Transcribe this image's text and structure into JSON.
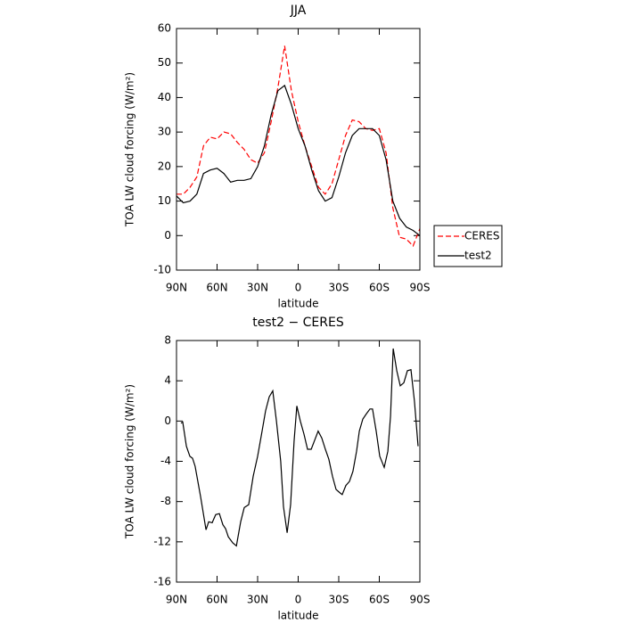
{
  "chart_data": [
    {
      "type": "line",
      "title": "JJA",
      "xlabel": "latitude",
      "ylabel": "TOA LW cloud forcing (W/m²)",
      "x": [
        -90,
        -85,
        -80,
        -75,
        -70,
        -65,
        -60,
        -55,
        -50,
        -45,
        -40,
        -35,
        -30,
        -25,
        -20,
        -15,
        -10,
        -5,
        0,
        5,
        10,
        15,
        20,
        25,
        30,
        35,
        40,
        45,
        50,
        55,
        60,
        65,
        70,
        75,
        80,
        85,
        90
      ],
      "series": [
        {
          "name": "CERES",
          "color": "#ff0000",
          "style": "dashed",
          "values": [
            12,
            12,
            14,
            17,
            26,
            28.5,
            28,
            30,
            29.5,
            27,
            25,
            22,
            21,
            24,
            33,
            43,
            55,
            42,
            33,
            26,
            20,
            14,
            12,
            15,
            22,
            29,
            33.5,
            33,
            31,
            30.5,
            31,
            24,
            8,
            -0.5,
            -1,
            -3,
            2
          ]
        },
        {
          "name": "test2",
          "color": "#000000",
          "style": "solid",
          "values": [
            11.5,
            9.5,
            10,
            12,
            18,
            19,
            19.5,
            18,
            15.5,
            16,
            16,
            16.5,
            20,
            26,
            35,
            42,
            43.5,
            38,
            31,
            26,
            19,
            13,
            10,
            11,
            17,
            24,
            29,
            31,
            31,
            31,
            29,
            22,
            10,
            5,
            2.5,
            1.5,
            0
          ]
        }
      ],
      "xlim": [
        -90,
        90
      ],
      "xticks": [
        {
          "value": -90,
          "label": "90N"
        },
        {
          "value": -60,
          "label": "60N"
        },
        {
          "value": -30,
          "label": "30N"
        },
        0,
        {
          "value": 30,
          "label": "30S"
        },
        {
          "value": 60,
          "label": "60S"
        },
        {
          "value": 90,
          "label": "90S"
        }
      ],
      "ylim": [
        -10,
        60
      ],
      "yticks": [
        -10,
        0,
        10,
        20,
        30,
        40,
        50,
        60
      ],
      "legend": "right"
    },
    {
      "type": "line",
      "title": "test2 − CERES",
      "xlabel": "latitude",
      "ylabel": "TOA LW cloud forcing (W/m²)",
      "x": [
        -86.7,
        -85.4,
        -82.7,
        -80.1,
        -78.1,
        -76.2,
        -72.2,
        -68.2,
        -66.2,
        -63.6,
        -61.0,
        -58.3,
        -55.7,
        -53.7,
        -51.7,
        -48.4,
        -45.7,
        -42.5,
        -39.9,
        -36.6,
        -33.3,
        -30.0,
        -26.7,
        -24.1,
        -21.4,
        -18.8,
        -16.1,
        -12.9,
        -10.9,
        -8.2,
        -5.6,
        -3.0,
        -1.0,
        1.6,
        4.3,
        6.9,
        9.6,
        12.2,
        14.8,
        17.5,
        20.1,
        22.7,
        25.4,
        28.0,
        30.6,
        32.6,
        35.3,
        37.9,
        40.5,
        43.2,
        45.2,
        47.8,
        50.4,
        53.1,
        55.0,
        57.7,
        60.3,
        63.6,
        66.3,
        68.3,
        70.3,
        72.9,
        75.5,
        78.1,
        80.8,
        83.4,
        86.0,
        88.7
      ],
      "series": [
        {
          "color": "#000000",
          "style": "solid",
          "values": [
            -0.2,
            -0.1,
            -2.5,
            -3.5,
            -3.7,
            -4.5,
            -7.5,
            -10.8,
            -10,
            -10.1,
            -9.3,
            -9.2,
            -10.3,
            -10.7,
            -11.5,
            -12.1,
            -12.4,
            -10,
            -8.6,
            -8.3,
            -5.5,
            -3.5,
            -1,
            1,
            2.4,
            3,
            0,
            -4,
            -8.5,
            -11.1,
            -8.3,
            -2,
            1.5,
            0,
            -1.3,
            -2.8,
            -2.8,
            -1.9,
            -1,
            -1.7,
            -2.8,
            -3.8,
            -5.5,
            -6.8,
            -7.1,
            -7.3,
            -6.4,
            -6,
            -5,
            -3,
            -1,
            0.2,
            0.7,
            1.2,
            1.2,
            -1,
            -3.5,
            -4.6,
            -3,
            0.5,
            7.2,
            5,
            3.5,
            3.8,
            5,
            5.1,
            2,
            -2.5
          ]
        }
      ],
      "xlim": [
        -90,
        90
      ],
      "xticks": [
        {
          "value": -90,
          "label": "90N"
        },
        {
          "value": -60,
          "label": "60N"
        },
        {
          "value": -30,
          "label": "30N"
        },
        0,
        {
          "value": 30,
          "label": "30S"
        },
        {
          "value": 60,
          "label": "60S"
        },
        {
          "value": 90,
          "label": "90S"
        }
      ],
      "ylim": [
        -16,
        8
      ],
      "yticks": [
        -16,
        -12,
        -8,
        -4,
        0,
        4,
        8
      ]
    }
  ]
}
